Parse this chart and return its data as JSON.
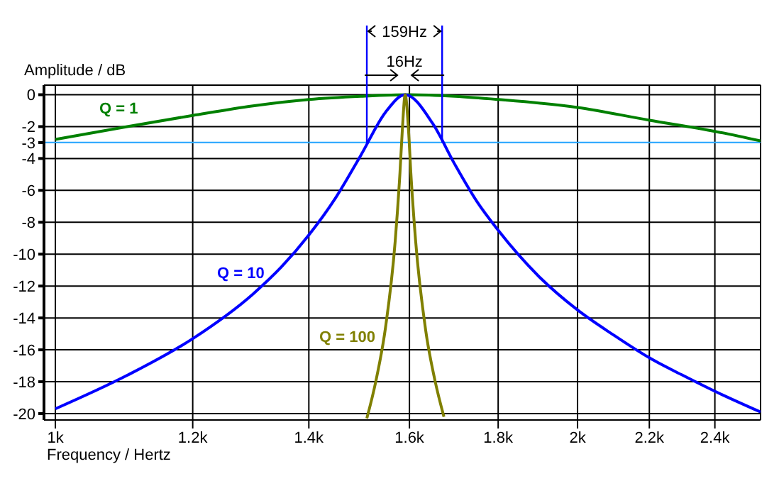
{
  "chart_data": {
    "type": "line",
    "xlabel": "Frequency / Hertz",
    "ylabel": "Amplitude / dB",
    "log": "x",
    "xlim": [
      985,
      2550
    ],
    "ylim": [
      -20.4,
      0.6
    ],
    "xticks": [
      {
        "value": 1000,
        "label": "1k"
      },
      {
        "value": 1200,
        "label": "1.2k"
      },
      {
        "value": 1400,
        "label": "1.4k"
      },
      {
        "value": 1600,
        "label": "1.6k"
      },
      {
        "value": 1800,
        "label": "1.8k"
      },
      {
        "value": 2000,
        "label": "2k"
      },
      {
        "value": 2200,
        "label": "2.2k"
      },
      {
        "value": 2400,
        "label": "2.4k"
      }
    ],
    "yticks": [
      0,
      -2,
      -3,
      -4,
      -6,
      -8,
      -10,
      -12,
      -14,
      -16,
      -18,
      -20
    ],
    "grid": true,
    "marker": "none",
    "line_style": "solid",
    "series": [
      {
        "name": "Q = 1",
        "color": "#008000",
        "x": [
          1000,
          1100,
          1200,
          1300,
          1400,
          1500,
          1600,
          1700,
          1800,
          2000,
          2200,
          2400,
          2550
        ],
        "values": [
          -2.8,
          -2,
          -1.3,
          -0.7,
          -0.3,
          -0.1,
          0,
          -0.1,
          -0.3,
          -0.8,
          -1.6,
          -2.3,
          -2.9
        ]
      },
      {
        "name": "Q = 10",
        "color": "#0000ff",
        "x": [
          1000,
          1100,
          1200,
          1300,
          1350,
          1400,
          1450,
          1500,
          1550,
          1591,
          1650,
          1700,
          1750,
          1800,
          1900,
          2000,
          2100,
          2200,
          2300,
          2400,
          2550
        ],
        "values": [
          -19.7,
          -17.6,
          -15.3,
          -12.5,
          -10.8,
          -8.8,
          -6.5,
          -3.8,
          -1.1,
          0,
          -1.8,
          -4.4,
          -6.7,
          -8.5,
          -11.4,
          -13.5,
          -15.1,
          -16.5,
          -17.6,
          -18.6,
          -19.9
        ]
      },
      {
        "name": "Q = 100",
        "color": "#808000",
        "x": [
          1512,
          1530,
          1550,
          1570,
          1580,
          1585,
          1591,
          1598,
          1603,
          1613,
          1635,
          1655,
          1675
        ],
        "values": [
          -20.3,
          -18,
          -14.6,
          -9.2,
          -4.9,
          -2.2,
          0,
          -2.2,
          -4.9,
          -9.1,
          -14.8,
          -17.9,
          -20.2
        ]
      }
    ],
    "ref_lines": [
      {
        "axis": "y",
        "value": -3,
        "color": "#33aaff"
      },
      {
        "axis": "x",
        "value": 1512,
        "color": "#0000ff"
      },
      {
        "axis": "x",
        "value": 1671,
        "color": "#0000ff"
      }
    ],
    "annotations": [
      "159Hz",
      "16Hz"
    ]
  }
}
